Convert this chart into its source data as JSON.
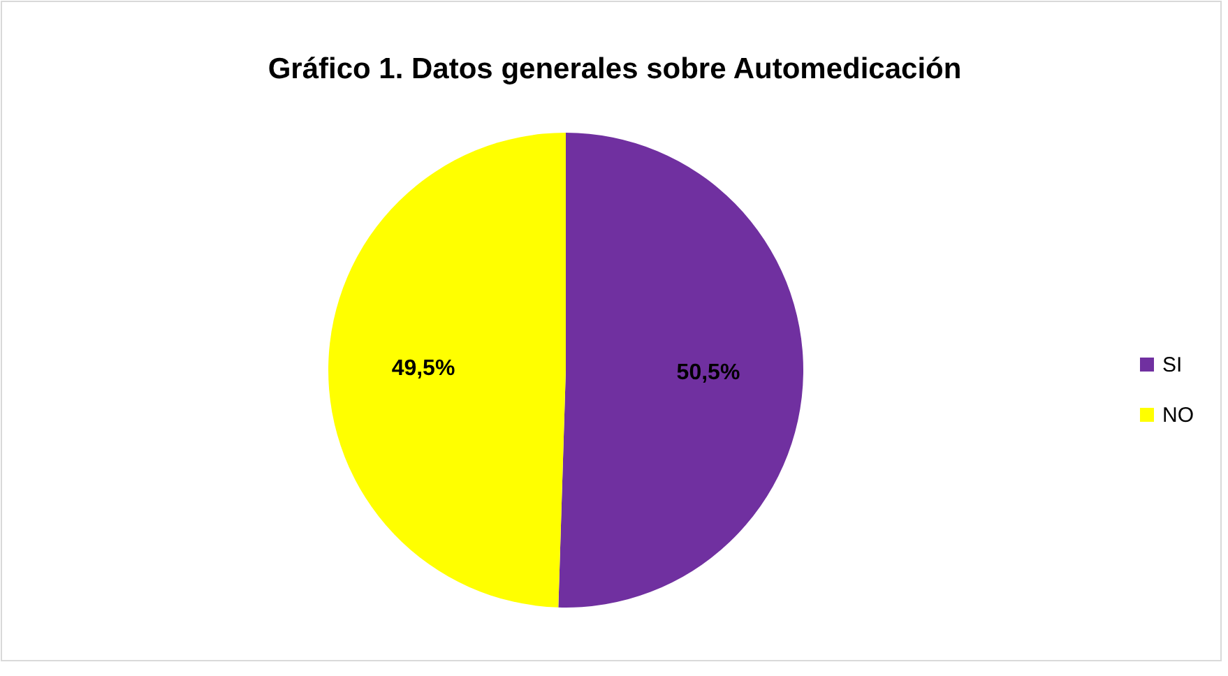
{
  "chart_data": {
    "type": "pie",
    "title": "Gráfico 1. Datos generales sobre Automedicación",
    "categories": [
      "SI",
      "NO"
    ],
    "values": [
      50.5,
      49.5
    ],
    "colors": [
      "#7030a0",
      "#ffff00"
    ],
    "value_labels": [
      "50,5%",
      "49,5%"
    ],
    "legend": "right"
  }
}
